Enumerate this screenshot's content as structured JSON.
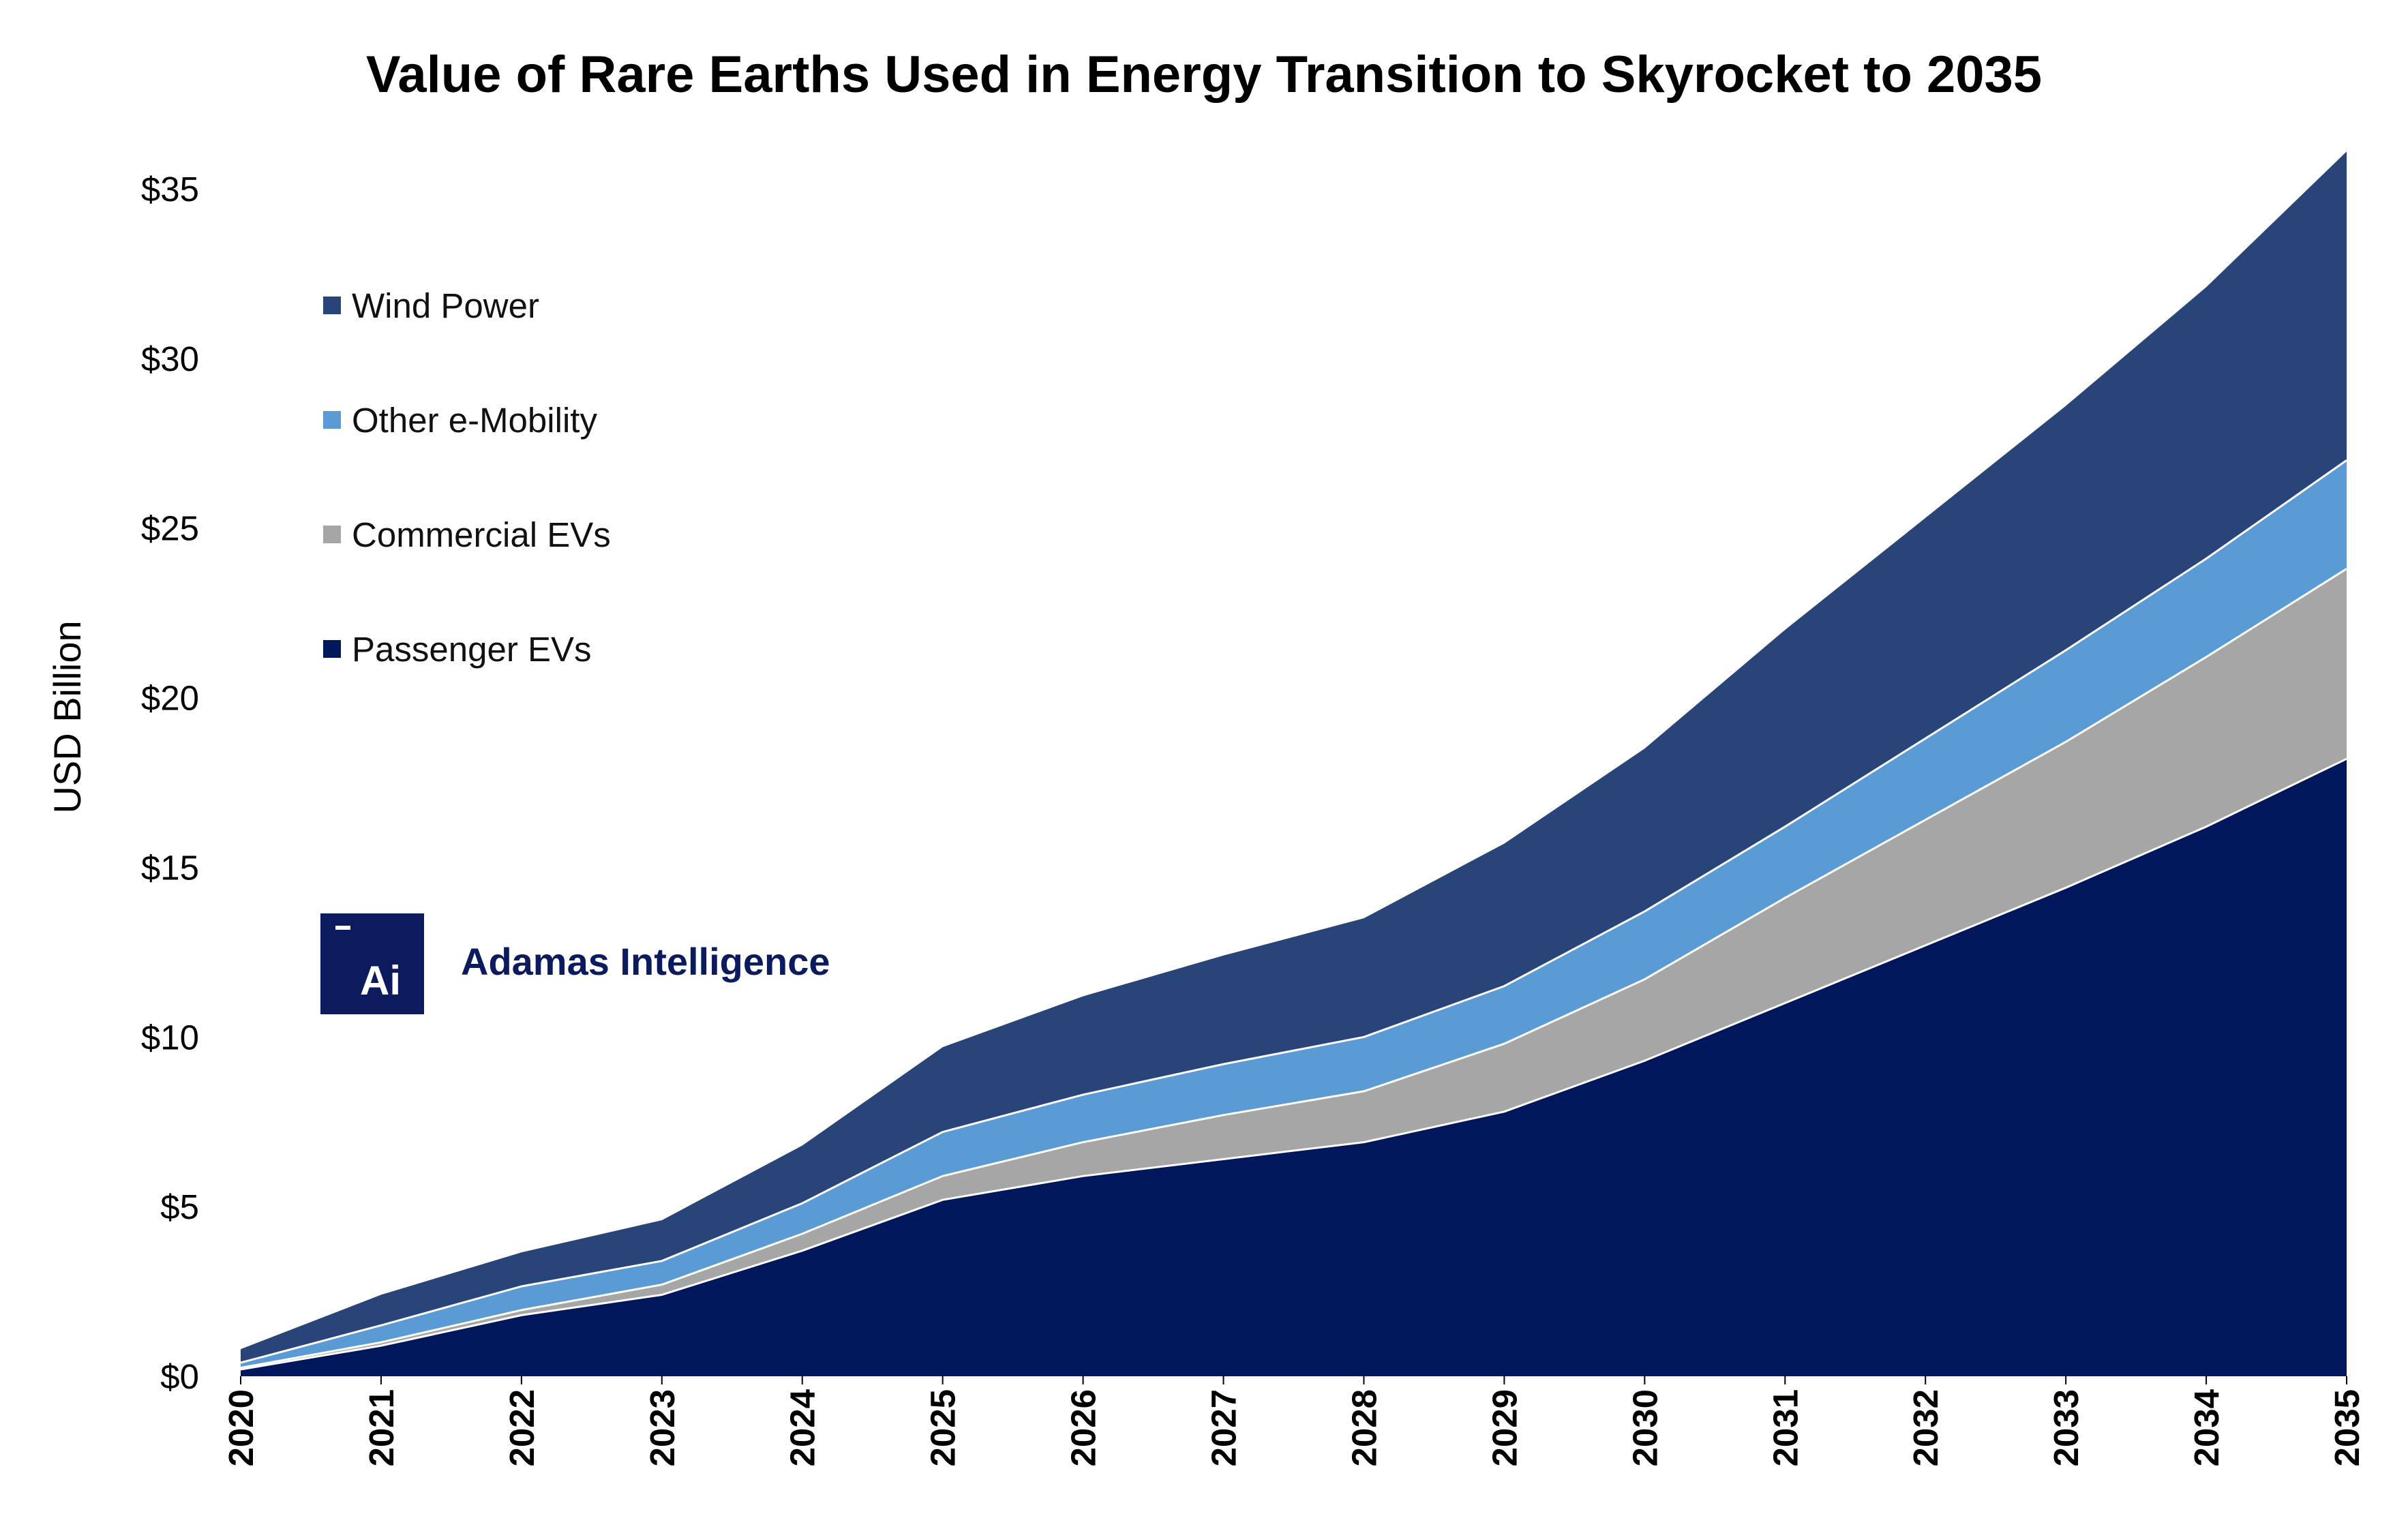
{
  "chart_data": {
    "type": "area",
    "stacked": true,
    "title": "Value of Rare Earths Used in Energy Transition to Skyrocket to 2035",
    "ylabel": "USD Billion",
    "xlabel": "",
    "categories": [
      "2020",
      "2021",
      "2022",
      "2023",
      "2024",
      "2025",
      "2026",
      "2027",
      "2028",
      "2029",
      "2030",
      "2031",
      "2032",
      "2033",
      "2034",
      "2035"
    ],
    "ylim": [
      0,
      35
    ],
    "yticks": [
      0,
      5,
      10,
      15,
      20,
      25,
      30,
      35
    ],
    "ytick_labels": [
      "$0",
      "$5",
      "$10",
      "$15",
      "$20",
      "$25",
      "$30",
      "$35"
    ],
    "grid": false,
    "legend_position": "top-left",
    "series": [
      {
        "name": "Passenger EVs",
        "color": "#00175c",
        "values": [
          0.2,
          0.9,
          1.8,
          2.4,
          3.7,
          5.2,
          5.9,
          6.4,
          6.9,
          7.8,
          9.3,
          11.0,
          12.7,
          14.4,
          16.2,
          18.2
        ]
      },
      {
        "name": "Commercial EVs",
        "color": "#a6a6a6",
        "values": [
          0.05,
          0.1,
          0.15,
          0.3,
          0.5,
          0.7,
          1.0,
          1.3,
          1.5,
          2.0,
          2.4,
          3.1,
          3.7,
          4.3,
          5.0,
          5.6
        ]
      },
      {
        "name": "Other e-Mobility",
        "color": "#5b9bd5",
        "values": [
          0.15,
          0.5,
          0.7,
          0.7,
          0.9,
          1.3,
          1.4,
          1.5,
          1.6,
          1.7,
          2.0,
          2.1,
          2.4,
          2.7,
          2.9,
          3.2
        ]
      },
      {
        "name": "Wind Power",
        "color": "#284478",
        "values": [
          0.4,
          0.9,
          1.0,
          1.2,
          1.7,
          2.5,
          2.9,
          3.2,
          3.5,
          4.2,
          4.8,
          5.8,
          6.5,
          7.2,
          8.0,
          9.1
        ]
      }
    ]
  },
  "logo": {
    "mark": "Ai",
    "name": "Adamas Intelligence"
  }
}
